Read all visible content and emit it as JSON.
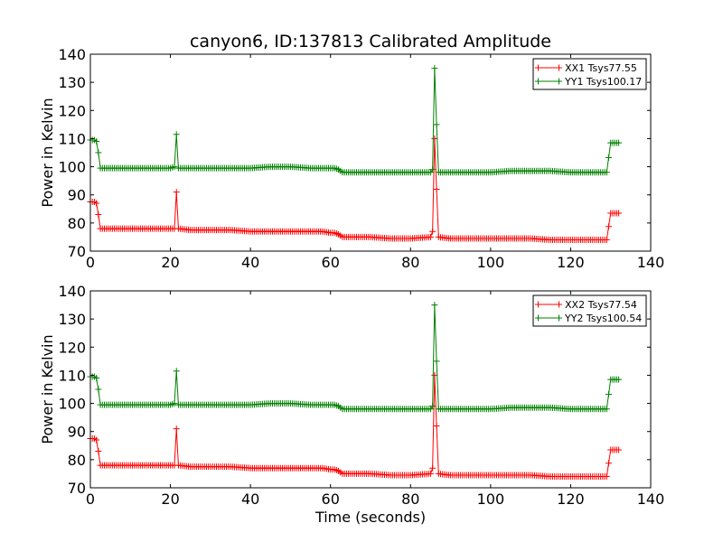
{
  "figure": {
    "title": "canyon6, ID:137813 Calibrated Amplitude"
  },
  "colors": {
    "series_a": "#ff0000",
    "series_b": "#008000",
    "frame": "#000000",
    "background": "#ffffff"
  },
  "chart_data": [
    {
      "type": "line",
      "title": "canyon6, ID:137813 Calibrated Amplitude",
      "xlabel": "",
      "ylabel": "Power in Kelvin",
      "xlim": [
        0,
        140
      ],
      "ylim": [
        70,
        140
      ],
      "xticks": [
        0,
        20,
        40,
        60,
        80,
        100,
        120,
        140
      ],
      "yticks": [
        70,
        80,
        90,
        100,
        110,
        120,
        130,
        140
      ],
      "xtick_labels": [
        "0",
        "20",
        "40",
        "60",
        "80",
        "100",
        "120",
        "140"
      ],
      "ytick_labels": [
        "70",
        "80",
        "90",
        "100",
        "110",
        "120",
        "130",
        "140"
      ],
      "grid": false,
      "legend_position": "top-right",
      "marker": "plus",
      "series": [
        {
          "name": "XX1 Tsys77.55",
          "color": "#ff0000",
          "x": [
            0,
            1,
            1.5,
            2,
            2.5,
            5,
            10,
            15,
            20,
            21,
            21.5,
            22,
            25,
            30,
            35,
            40,
            45,
            50,
            55,
            58,
            60,
            61,
            62,
            63,
            65,
            70,
            75,
            80,
            85,
            85.5,
            86,
            86.5,
            87,
            90,
            95,
            100,
            105,
            110,
            115,
            120,
            125,
            128,
            129,
            130,
            131,
            132
          ],
          "y": [
            87.5,
            87.5,
            87,
            83,
            78,
            78,
            78,
            78,
            78,
            78,
            91,
            78,
            77.5,
            77.5,
            77.5,
            77,
            77,
            77,
            77,
            77,
            76.5,
            76.5,
            76,
            75,
            75,
            75,
            74.5,
            74.5,
            75,
            77,
            110,
            92,
            75,
            74.5,
            74.5,
            74.5,
            74.5,
            74.5,
            74,
            74,
            74,
            74,
            74,
            83.5,
            83.5,
            83.5
          ]
        },
        {
          "name": "YY1 Tsys100.17",
          "color": "#008000",
          "x": [
            0,
            1,
            1.5,
            2,
            2.5,
            5,
            10,
            15,
            20,
            21,
            21.5,
            22,
            25,
            30,
            35,
            40,
            45,
            50,
            55,
            58,
            60,
            61,
            62,
            63,
            65,
            70,
            75,
            80,
            85,
            85.5,
            86,
            86.5,
            87,
            90,
            95,
            100,
            105,
            110,
            115,
            120,
            125,
            128,
            129,
            130,
            131,
            132
          ],
          "y": [
            109.5,
            109.5,
            109,
            105,
            99.5,
            99.5,
            99.5,
            99.5,
            99.5,
            100,
            111.5,
            99.5,
            99.5,
            99.5,
            99.5,
            99.5,
            100,
            100,
            99.5,
            99.5,
            99.5,
            99.5,
            99,
            98,
            98,
            98,
            98,
            98,
            98,
            99,
            135,
            115,
            98,
            98,
            98,
            98,
            98.5,
            98.5,
            98.5,
            98,
            98,
            98,
            98,
            108.5,
            108.5,
            108.5
          ]
        }
      ]
    },
    {
      "type": "line",
      "title": "",
      "xlabel": "Time (seconds)",
      "ylabel": "Power in Kelvin",
      "xlim": [
        0,
        140
      ],
      "ylim": [
        70,
        140
      ],
      "xticks": [
        0,
        20,
        40,
        60,
        80,
        100,
        120,
        140
      ],
      "yticks": [
        70,
        80,
        90,
        100,
        110,
        120,
        130,
        140
      ],
      "xtick_labels": [
        "0",
        "20",
        "40",
        "60",
        "80",
        "100",
        "120",
        "140"
      ],
      "ytick_labels": [
        "70",
        "80",
        "90",
        "100",
        "110",
        "120",
        "130",
        "140"
      ],
      "grid": false,
      "legend_position": "top-right",
      "marker": "plus",
      "series": [
        {
          "name": "XX2 Tsys77.54",
          "color": "#ff0000",
          "x": [
            0,
            1,
            1.5,
            2,
            2.5,
            5,
            10,
            15,
            20,
            21,
            21.5,
            22,
            25,
            30,
            35,
            40,
            45,
            50,
            55,
            58,
            60,
            61,
            62,
            63,
            65,
            70,
            75,
            80,
            85,
            85.5,
            86,
            86.5,
            87,
            90,
            95,
            100,
            105,
            110,
            115,
            120,
            125,
            128,
            129,
            130,
            131,
            132
          ],
          "y": [
            87.5,
            87.5,
            87,
            83,
            78,
            78,
            78,
            78,
            78,
            78,
            91,
            78,
            77.5,
            77.5,
            77.5,
            77,
            77,
            77,
            77,
            77,
            76.5,
            76.5,
            76,
            75,
            75,
            75,
            74.5,
            74.5,
            75,
            77,
            110,
            92,
            75,
            74.5,
            74.5,
            74.5,
            74.5,
            74.5,
            74,
            74,
            74,
            74,
            74,
            83.5,
            83.5,
            83.5
          ]
        },
        {
          "name": "YY2 Tsys100.54",
          "color": "#008000",
          "x": [
            0,
            1,
            1.5,
            2,
            2.5,
            5,
            10,
            15,
            20,
            21,
            21.5,
            22,
            25,
            30,
            35,
            40,
            45,
            50,
            55,
            58,
            60,
            61,
            62,
            63,
            65,
            70,
            75,
            80,
            85,
            85.5,
            86,
            86.5,
            87,
            90,
            95,
            100,
            105,
            110,
            115,
            120,
            125,
            128,
            129,
            130,
            131,
            132
          ],
          "y": [
            109.5,
            109.5,
            109,
            105,
            99.5,
            99.5,
            99.5,
            99.5,
            99.5,
            100,
            111.5,
            99.5,
            99.5,
            99.5,
            99.5,
            99.5,
            100,
            100,
            99.5,
            99.5,
            99.5,
            99.5,
            99,
            98,
            98,
            98,
            98,
            98,
            98,
            99,
            135,
            115,
            98,
            98,
            98,
            98,
            98.5,
            98.5,
            98.5,
            98,
            98,
            98,
            98,
            108.5,
            108.5,
            108.5
          ]
        }
      ]
    }
  ]
}
